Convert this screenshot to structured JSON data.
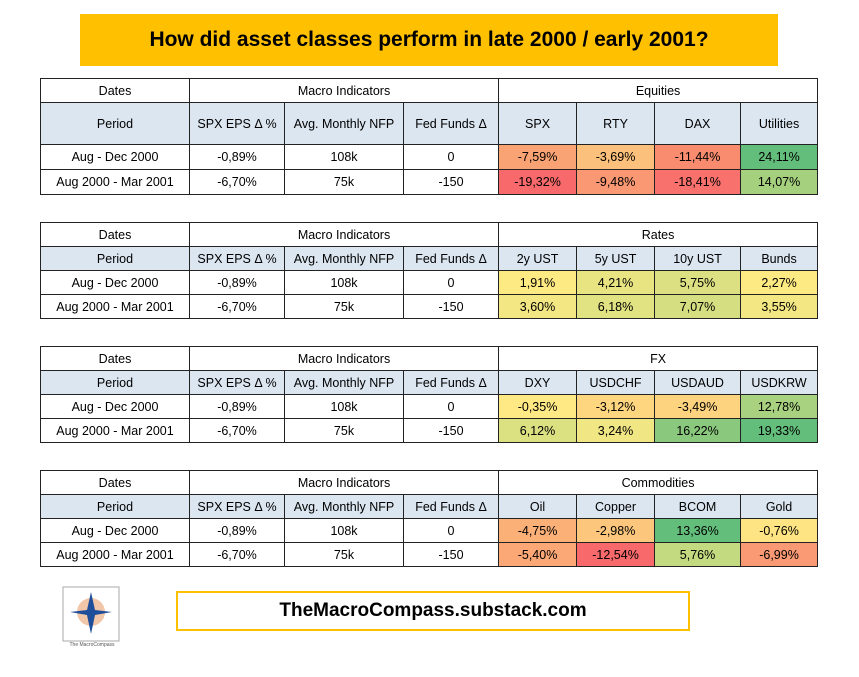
{
  "title": "How did asset classes perform in late 2000 / early 2001?",
  "tables": [
    {
      "group_headers": [
        "Dates",
        "Macro Indicators",
        "Equities"
      ],
      "headers": [
        "Period",
        "SPX EPS Δ %",
        "Avg. Monthly NFP",
        "Fed Funds Δ",
        "SPX",
        "RTY",
        "DAX",
        "Utilities"
      ],
      "rows": [
        [
          "Aug - Dec 2000",
          "-0,89%",
          "108k",
          "0",
          "-7,59%",
          "-3,69%",
          "-11,44%",
          "24,11%"
        ],
        [
          "Aug 2000 - Mar 2001",
          "-6,70%",
          "75k",
          "-150",
          "-19,32%",
          "-9,48%",
          "-18,41%",
          "14,07%"
        ]
      ],
      "colors": [
        [
          "#f9a273",
          "#fbc07b",
          "#f98b6f",
          "#63be7b"
        ],
        [
          "#f8696b",
          "#fa9873",
          "#f8716c",
          "#a5d17f"
        ]
      ]
    },
    {
      "group_headers": [
        "Dates",
        "Macro Indicators",
        "Rates"
      ],
      "headers": [
        "Period",
        "SPX EPS Δ %",
        "Avg. Monthly NFP",
        "Fed Funds Δ",
        "2y UST",
        "5y UST",
        "10y UST",
        "Bunds"
      ],
      "rows": [
        [
          "Aug - Dec 2000",
          "-0,89%",
          "108k",
          "0",
          "1,91%",
          "4,21%",
          "5,75%",
          "2,27%"
        ],
        [
          "Aug 2000 - Mar 2001",
          "-6,70%",
          "75k",
          "-150",
          "3,60%",
          "6,18%",
          "7,07%",
          "3,55%"
        ]
      ],
      "colors": [
        [
          "#feea83",
          "#e9e482",
          "#dde082",
          "#feea83"
        ],
        [
          "#f3e783",
          "#e1e282",
          "#d5de81",
          "#f3e783"
        ]
      ]
    },
    {
      "group_headers": [
        "Dates",
        "Macro Indicators",
        "FX"
      ],
      "headers": [
        "Period",
        "SPX EPS Δ %",
        "Avg. Monthly NFP",
        "Fed Funds Δ",
        "DXY",
        "USDCHF",
        "USDAUD",
        "USDKRW"
      ],
      "rows": [
        [
          "Aug - Dec 2000",
          "-0,89%",
          "108k",
          "0",
          "-0,35%",
          "-3,12%",
          "-3,49%",
          "12,78%"
        ],
        [
          "Aug 2000 - Mar 2001",
          "-6,70%",
          "75k",
          "-150",
          "6,12%",
          "3,24%",
          "16,22%",
          "19,33%"
        ]
      ],
      "colors": [
        [
          "#ffe984",
          "#fed680",
          "#fed380",
          "#a8d27f"
        ],
        [
          "#dbe081",
          "#f0e683",
          "#8ac97d",
          "#63be7b"
        ]
      ]
    },
    {
      "group_headers": [
        "Dates",
        "Macro Indicators",
        "Commodities"
      ],
      "headers": [
        "Period",
        "SPX EPS Δ %",
        "Avg. Monthly NFP",
        "Fed Funds Δ",
        "Oil",
        "Copper",
        "BCOM",
        "Gold"
      ],
      "rows": [
        [
          "Aug - Dec 2000",
          "-0,89%",
          "108k",
          "0",
          "-4,75%",
          "-2,98%",
          "13,36%",
          "-0,76%"
        ],
        [
          "Aug 2000 - Mar 2001",
          "-6,70%",
          "75k",
          "-150",
          "-5,40%",
          "-12,54%",
          "5,76%",
          "-6,99%"
        ]
      ],
      "colors": [
        [
          "#fbb078",
          "#fcc77d",
          "#63be7b",
          "#fee483"
        ],
        [
          "#fba876",
          "#f8696b",
          "#c4da80",
          "#fa9a74"
        ]
      ]
    }
  ],
  "footer": "TheMacroCompass.substack.com",
  "logo_text": "The MacroCompass"
}
